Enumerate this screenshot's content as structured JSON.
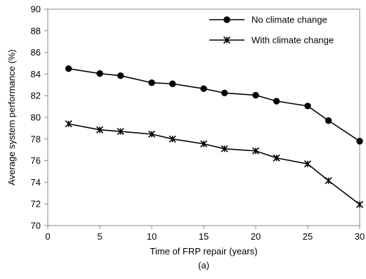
{
  "chart_data": {
    "type": "line",
    "caption": "(a)",
    "xlabel": "Time of FRP repair (years)",
    "ylabel": "Average system performance (%)",
    "xlim": [
      0,
      30
    ],
    "ylim": [
      70,
      90
    ],
    "xticks": [
      0,
      5,
      10,
      15,
      20,
      25,
      30
    ],
    "yticks": [
      70,
      72,
      74,
      76,
      78,
      80,
      82,
      84,
      86,
      88,
      90
    ],
    "grid": false,
    "legend_position": "top-right",
    "series": [
      {
        "name": "No climate change",
        "marker": "circle",
        "color": "#000000",
        "x": [
          2,
          5,
          7,
          10,
          12,
          15,
          17,
          20,
          22,
          25,
          27,
          30
        ],
        "y": [
          84.5,
          84.05,
          83.85,
          83.2,
          83.1,
          82.65,
          82.25,
          82.05,
          81.5,
          81.05,
          79.7,
          77.8
        ]
      },
      {
        "name": "With climate change",
        "marker": "star",
        "color": "#000000",
        "x": [
          2,
          5,
          7,
          10,
          12,
          15,
          17,
          20,
          22,
          25,
          27,
          30
        ],
        "y": [
          79.4,
          78.85,
          78.7,
          78.45,
          78.0,
          77.55,
          77.1,
          76.9,
          76.25,
          75.7,
          74.15,
          71.95
        ]
      }
    ]
  }
}
